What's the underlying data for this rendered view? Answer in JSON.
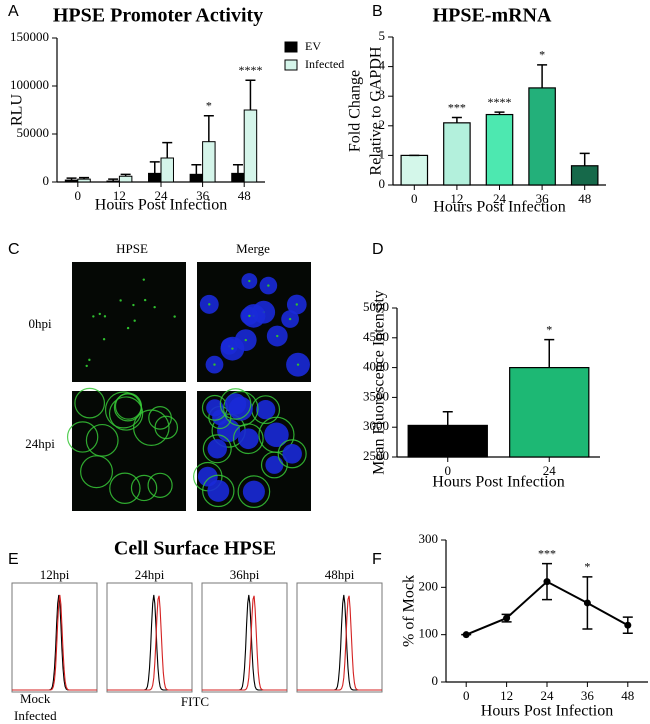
{
  "panel_letters": [
    "A",
    "B",
    "C",
    "D",
    "E",
    "F"
  ],
  "chart_data": [
    {
      "type": "bar",
      "title": "HPSE Promoter Activity",
      "ylabel": [
        "RLU"
      ],
      "xlabel": "Hours Post Infection",
      "categories": [
        "0",
        "12",
        "24",
        "36",
        "48"
      ],
      "series": [
        {
          "name": "EV",
          "color": "#000000",
          "values": [
            2000,
            1000,
            9000,
            8000,
            9000
          ],
          "errors": [
            2000,
            2000,
            12000,
            10000,
            9000
          ],
          "significance": [
            null,
            null,
            null,
            null,
            null
          ]
        },
        {
          "name": "Infected",
          "color": "#d5f5ea",
          "values": [
            3000,
            6000,
            25000,
            42000,
            75000
          ],
          "errors": [
            1500,
            2000,
            16000,
            27000,
            31000
          ],
          "significance": [
            null,
            null,
            null,
            "*",
            "****"
          ]
        }
      ],
      "ylim": [
        0,
        150000
      ],
      "yticks": [
        0,
        50000,
        100000,
        150000
      ],
      "legend": "top-right"
    },
    {
      "type": "bar",
      "title": "HPSE-mRNA",
      "ylabel": [
        "Fold Change",
        "Relative to GAPDH"
      ],
      "xlabel": "Hours Post Infection",
      "categories": [
        "0",
        "12",
        "24",
        "36",
        "48"
      ],
      "values": [
        1,
        2.1,
        2.38,
        3.28,
        0.65
      ],
      "errors": [
        0,
        0.18,
        0.08,
        0.78,
        0.42
      ],
      "significance": [
        null,
        "***",
        "****",
        "*",
        null
      ],
      "colors": [
        "#d4f7ea",
        "#b3f0dc",
        "#4de8b0",
        "#23b07a",
        "#16694a"
      ],
      "ylim": [
        0,
        5
      ],
      "yticks": [
        0,
        1,
        2,
        3,
        4,
        5
      ]
    },
    {
      "type": "bar",
      "ylabel": [
        "Mean Fluorescence Intensity"
      ],
      "xlabel": "Hours Post Infection",
      "categories": [
        "0",
        "24"
      ],
      "values": [
        3030,
        4000
      ],
      "errors": [
        230,
        470
      ],
      "significance": [
        null,
        "*"
      ],
      "colors": [
        "#000000",
        "#1db874"
      ],
      "ylim": [
        2500,
        5000
      ],
      "yticks": [
        2500,
        3000,
        3500,
        4000,
        4500,
        5000
      ]
    },
    {
      "type": "line",
      "ylabel": [
        "% of Mock"
      ],
      "xlabel": "Hours Post Infection",
      "categories": [
        "0",
        "12",
        "24",
        "36",
        "48"
      ],
      "values": [
        100,
        135,
        212,
        167,
        120
      ],
      "errors": [
        0,
        8,
        38,
        55,
        17
      ],
      "significance": [
        null,
        null,
        "***",
        "*",
        null
      ],
      "color": "#000000",
      "ylim": [
        0,
        300
      ],
      "yticks": [
        0,
        100,
        200,
        300
      ]
    }
  ],
  "microscopy": {
    "columns": [
      "HPSE",
      "Merge"
    ],
    "rows": [
      "0hpi",
      "24hpi"
    ]
  },
  "flow": {
    "title": "Cell Surface HPSE",
    "timepoints": [
      "12hpi",
      "24hpi",
      "36hpi",
      "48hpi"
    ],
    "xlabel": "FITC",
    "legend": [
      {
        "name": "Mock",
        "color": "#000000"
      },
      {
        "name": "Infected",
        "color": "#d42020"
      }
    ]
  }
}
